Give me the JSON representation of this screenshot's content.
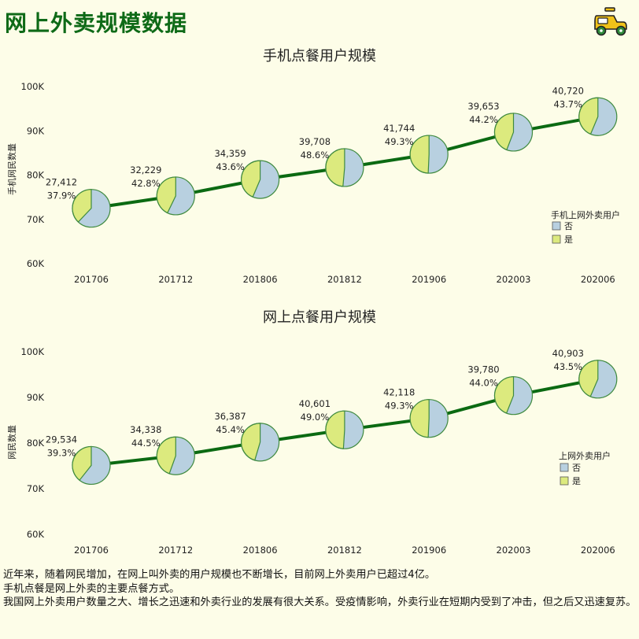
{
  "page": {
    "title": "网上外卖规模数据",
    "notes": [
      "近年来，随着网民增加，在网上叫外卖的用户规模也不断增长，目前网上外卖用户已超过4亿。",
      "手机点餐是网上外卖的主要点餐方式。",
      "我国网上外卖用户数量之大、增长之迅速和外卖行业的发展有很大关系。受疫情影响，外卖行业在短期内受到了冲击，但之后又迅速复苏。"
    ],
    "logo_icon": "scooter-icon"
  },
  "colors": {
    "title": "#0e6a17",
    "line": "#0b6a12",
    "pie_no": "#b8d0e0",
    "pie_yes": "#dcea7e",
    "pie_stroke": "#3f8a3f",
    "background": "#fdfde8"
  },
  "chart_data": [
    {
      "type": "line-pie",
      "title": "手机点餐用户规模",
      "ylabel": "手机网民数量",
      "ylim": [
        60000,
        100000
      ],
      "yticks": [
        "60K",
        "70K",
        "80K",
        "90K",
        "100K"
      ],
      "categories": [
        "201706",
        "201712",
        "201806",
        "201812",
        "201906",
        "202003",
        "202006"
      ],
      "line_values": [
        72500,
        75300,
        79000,
        81700,
        84700,
        89700,
        93200
      ],
      "values": [
        "27,412",
        "32,229",
        "34,359",
        "39,708",
        "41,744",
        "39,653",
        "40,720"
      ],
      "pct": [
        "37.9%",
        "42.8%",
        "43.6%",
        "48.6%",
        "49.3%",
        "44.2%",
        "43.7%"
      ],
      "pct_values": [
        37.9,
        42.8,
        43.6,
        48.6,
        49.3,
        44.2,
        43.7
      ],
      "legend_title": "手机上网外卖用户",
      "legend": [
        "否",
        "是"
      ]
    },
    {
      "type": "line-pie",
      "title": "网上点餐用户规模",
      "ylabel": "网民数量",
      "ylim": [
        60000,
        100000
      ],
      "yticks": [
        "60K",
        "70K",
        "80K",
        "90K",
        "100K"
      ],
      "categories": [
        "201706",
        "201712",
        "201806",
        "201812",
        "201906",
        "202003",
        "202006"
      ],
      "line_values": [
        75100,
        77200,
        80200,
        82900,
        85400,
        90400,
        94000
      ],
      "values": [
        "29,534",
        "34,338",
        "36,387",
        "40,601",
        "42,118",
        "39,780",
        "40,903"
      ],
      "pct": [
        "39.3%",
        "44.5%",
        "45.4%",
        "49.0%",
        "49.3%",
        "44.0%",
        "43.5%"
      ],
      "pct_values": [
        39.3,
        44.5,
        45.4,
        49.0,
        49.3,
        44.0,
        43.5
      ],
      "legend_title": "上网外卖用户",
      "legend": [
        "否",
        "是"
      ]
    }
  ]
}
